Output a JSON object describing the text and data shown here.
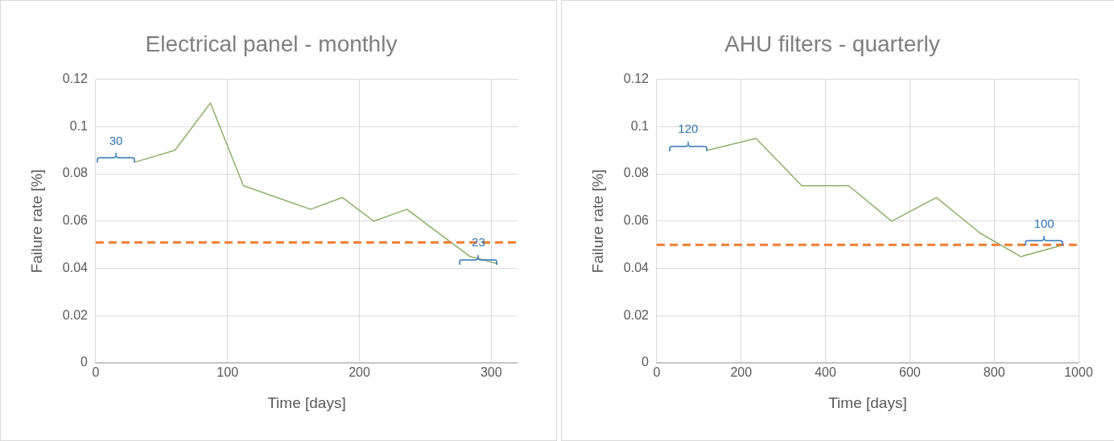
{
  "chart_data": [
    {
      "type": "line",
      "title": "Electrical panel - monthly",
      "xlabel": "Time [days]",
      "ylabel": "Failure rate [%]",
      "series": [
        {
          "color": "#8faf6b",
          "x": [
            30,
            60,
            87,
            112,
            163,
            187,
            211,
            236,
            284,
            305
          ],
          "values": [
            0.085,
            0.09,
            0.11,
            0.075,
            0.065,
            0.07,
            0.06,
            0.065,
            0.045,
            0.042
          ]
        }
      ],
      "xlim": [
        0,
        320
      ],
      "xticks": [
        0,
        100,
        200,
        300
      ],
      "ylim": [
        0,
        0.12
      ],
      "yticks": [
        0,
        0.02,
        0.04,
        0.06,
        0.08,
        0.1,
        0.12
      ],
      "ref_lines": [
        {
          "axis": "y",
          "value": 0.051,
          "color": "#ed7d31",
          "line_style": "dashed"
        }
      ],
      "annotations": [
        {
          "text": "30",
          "x": 30,
          "y": 0.085
        },
        {
          "text": "23",
          "x": 305,
          "y": 0.042
        }
      ],
      "grid": true,
      "legend": false,
      "marker": "none",
      "line_style": "solid"
    },
    {
      "type": "line",
      "title": "AHU filters - quarterly",
      "xlabel": "Time [days]",
      "ylabel": "Failure rate [%]",
      "series": [
        {
          "color": "#8faf6b",
          "x": [
            120,
            235,
            344,
            455,
            557,
            663,
            766,
            863,
            964
          ],
          "values": [
            0.09,
            0.095,
            0.075,
            0.075,
            0.06,
            0.07,
            0.055,
            0.045,
            0.05
          ]
        }
      ],
      "xlim": [
        0,
        1000
      ],
      "xticks": [
        0,
        200,
        400,
        600,
        800,
        1000
      ],
      "ylim": [
        0,
        0.12
      ],
      "yticks": [
        0,
        0.02,
        0.04,
        0.06,
        0.08,
        0.1,
        0.12
      ],
      "ref_lines": [
        {
          "axis": "y",
          "value": 0.05,
          "color": "#ed7d31",
          "line_style": "dashed"
        }
      ],
      "annotations": [
        {
          "text": "120",
          "x": 120,
          "y": 0.09
        },
        {
          "text": "100",
          "x": 964,
          "y": 0.05
        }
      ],
      "grid": true,
      "legend": false,
      "marker": "none",
      "line_style": "solid"
    }
  ]
}
